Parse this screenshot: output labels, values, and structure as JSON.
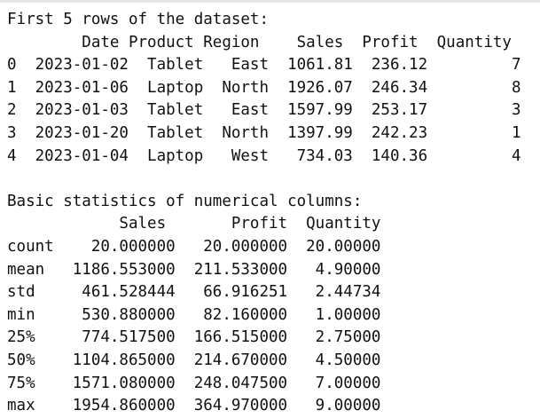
{
  "cell_output": {
    "lines": [
      "First 5 rows of the dataset:",
      "        Date Product Region    Sales  Profit  Quantity",
      "0  2023-01-02  Tablet   East  1061.81  236.12         7",
      "1  2023-01-06  Laptop  North  1926.07  246.34         8",
      "2  2023-01-03  Tablet   East  1597.99  253.17         3",
      "3  2023-01-20  Tablet  North  1397.99  242.23         1",
      "4  2023-01-04  Laptop   West   734.03  140.36         4",
      "",
      "Basic statistics of numerical columns:",
      "            Sales       Profit  Quantity",
      "count    20.000000   20.000000  20.00000",
      "mean   1186.553000  211.533000   4.90000",
      "std     461.528444   66.916251   2.44734",
      "min     530.880000   82.160000   1.00000",
      "25%     774.517500  166.515000   2.75000",
      "50%    1104.865000  214.670000   4.50000",
      "75%    1571.080000  248.047500   7.00000",
      "max    1954.860000  364.970000   9.00000"
    ]
  }
}
